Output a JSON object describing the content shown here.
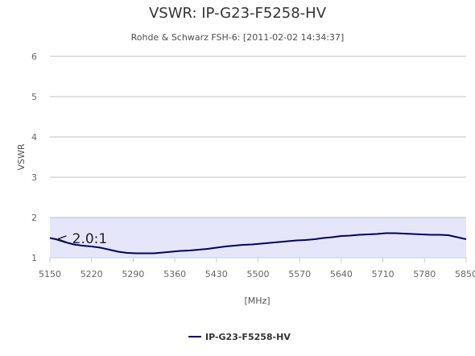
{
  "chart_data": {
    "type": "line",
    "title": "VSWR: IP-G23-F5258-HV",
    "subtitle": "Rohde & Schwarz FSH-6: [2011-02-02 14:34:37]",
    "xlabel": "[MHz]",
    "ylabel": "VSWR",
    "xlim": [
      5150,
      5850
    ],
    "ylim": [
      1,
      6
    ],
    "x_ticks": [
      5150,
      5220,
      5290,
      5360,
      5430,
      5500,
      5570,
      5640,
      5710,
      5780,
      5850
    ],
    "y_ticks": [
      1,
      2,
      3,
      4,
      5,
      6
    ],
    "grid": true,
    "legend_position": "bottom-center",
    "band": {
      "from": 1,
      "to": 2,
      "color": "#e6e6fa"
    },
    "annotation": {
      "text": "< 2.0:1",
      "x": 5150,
      "y": 1.5
    },
    "series": [
      {
        "name": "IP-G23-F5258-HV",
        "color": "#000066",
        "x": [
          5150,
          5160,
          5175,
          5190,
          5205,
          5220,
          5235,
          5250,
          5265,
          5280,
          5295,
          5310,
          5325,
          5340,
          5355,
          5370,
          5385,
          5400,
          5415,
          5430,
          5445,
          5460,
          5475,
          5490,
          5505,
          5520,
          5535,
          5550,
          5565,
          5580,
          5595,
          5610,
          5625,
          5640,
          5655,
          5670,
          5685,
          5700,
          5715,
          5730,
          5745,
          5760,
          5775,
          5790,
          5805,
          5820,
          5835,
          5850
        ],
        "y": [
          1.49,
          1.46,
          1.39,
          1.33,
          1.3,
          1.28,
          1.25,
          1.2,
          1.15,
          1.12,
          1.11,
          1.11,
          1.11,
          1.13,
          1.15,
          1.17,
          1.18,
          1.2,
          1.22,
          1.25,
          1.28,
          1.3,
          1.32,
          1.33,
          1.35,
          1.37,
          1.39,
          1.41,
          1.43,
          1.44,
          1.46,
          1.49,
          1.51,
          1.54,
          1.55,
          1.57,
          1.58,
          1.59,
          1.61,
          1.61,
          1.6,
          1.59,
          1.58,
          1.57,
          1.57,
          1.56,
          1.51,
          1.46
        ]
      }
    ]
  }
}
